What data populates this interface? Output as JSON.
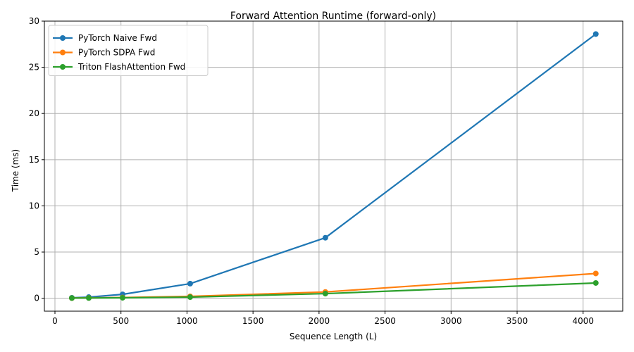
{
  "chart_data": {
    "type": "line",
    "title": "Forward Attention Runtime (forward-only)",
    "xlabel": "Sequence Length (L)",
    "ylabel": "Time (ms)",
    "xlim": [
      -80,
      4300
    ],
    "ylim": [
      -1.4,
      30
    ],
    "xticks": [
      0,
      500,
      1000,
      1500,
      2000,
      2500,
      3000,
      3500,
      4000
    ],
    "yticks": [
      0,
      5,
      10,
      15,
      20,
      25,
      30
    ],
    "grid": true,
    "legend_position": "top-left",
    "x": [
      128,
      256,
      512,
      1024,
      2048,
      4096
    ],
    "series": [
      {
        "name": "PyTorch Naive Fwd",
        "color": "#1f77b4",
        "values": [
          0.05,
          0.12,
          0.42,
          1.58,
          6.55,
          28.6
        ]
      },
      {
        "name": "PyTorch SDPA Fwd",
        "color": "#ff7f0e",
        "values": [
          0.02,
          0.04,
          0.08,
          0.2,
          0.68,
          2.68
        ]
      },
      {
        "name": "Triton FlashAttention Fwd",
        "color": "#2ca02c",
        "values": [
          0.02,
          0.03,
          0.05,
          0.12,
          0.5,
          1.65
        ]
      }
    ]
  }
}
